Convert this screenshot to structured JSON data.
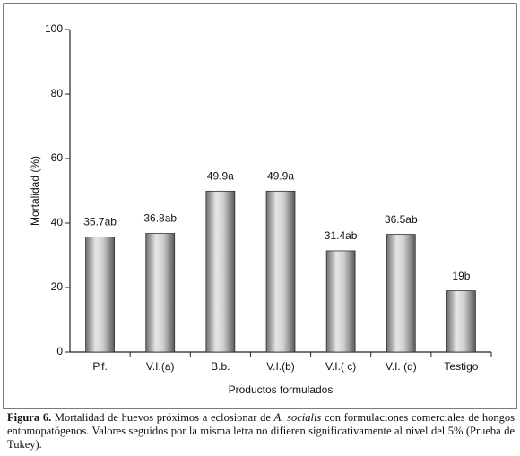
{
  "chart_data": {
    "type": "bar",
    "categories": [
      "P.f.",
      "V.I.(a)",
      "B.b.",
      "V.I.(b)",
      "V.I.( c)",
      "V.I. (d)",
      "Testigo"
    ],
    "values": [
      35.7,
      36.8,
      49.9,
      49.9,
      31.4,
      36.5,
      19
    ],
    "value_labels": [
      "35.7ab",
      "36.8ab",
      "49.9a",
      "49.9a",
      "31.4ab",
      "36.5ab",
      "19b"
    ],
    "color": "#a8a8a8",
    "ylim": [
      0,
      100
    ],
    "yticks": [
      0,
      20,
      40,
      60,
      80,
      100
    ],
    "y_label": "Mortalidad (%)",
    "x_label": "Productos formulados"
  },
  "caption": {
    "label": "Figura 6.",
    "text_before": "Mortalidad de huevos próximos a eclosionar de",
    "species": "A. socialis",
    "text_after": "con formulaciones comerciales de hongos entomopatógenos. Valores seguidos por la misma letra no difieren significativamente al nivel del 5% (Prueba de Tukey)."
  }
}
